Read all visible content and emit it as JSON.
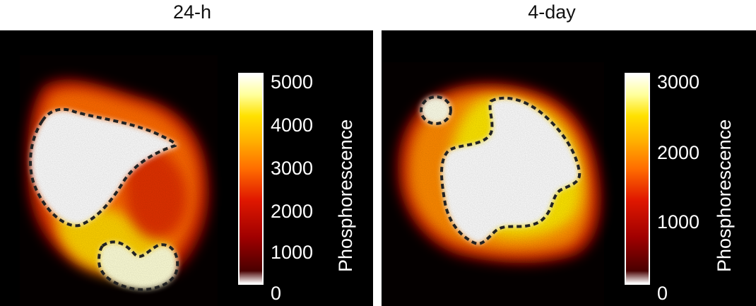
{
  "panels": [
    {
      "title": "24-h",
      "colorbar": {
        "label": "Phosphorescence",
        "ticks": [
          "5000",
          "4000",
          "3000",
          "2000",
          "1000",
          "0"
        ],
        "max": 5000
      }
    },
    {
      "title": "4-day",
      "colorbar": {
        "label": "Phosphorescence",
        "ticks": [
          "3000",
          "2000",
          "1000",
          "0"
        ],
        "max": 3000
      }
    }
  ],
  "colors": {
    "colormap": [
      "#000000",
      "#7a0000",
      "#d81600",
      "#ff7a00",
      "#ffd200",
      "#ffff7a",
      "#ffffff"
    ],
    "contour": "#222222"
  }
}
